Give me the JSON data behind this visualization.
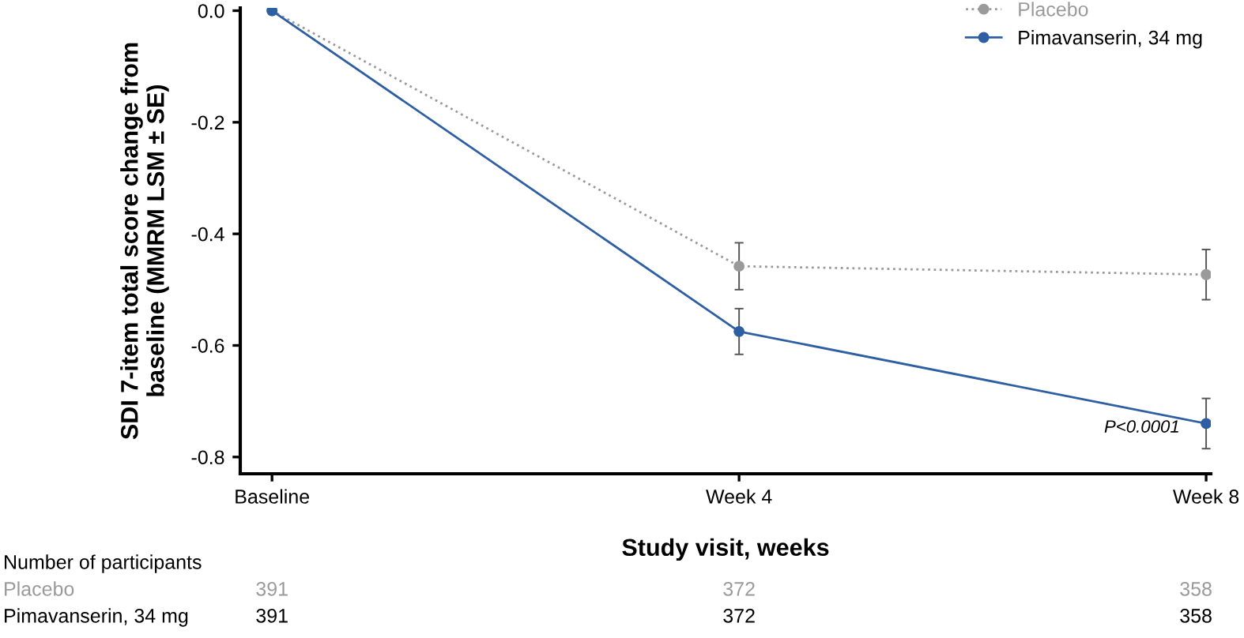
{
  "chart_data": {
    "type": "line",
    "categories": [
      "Baseline",
      "Week 4",
      "Week 8"
    ],
    "xlabel": "Study visit, weeks",
    "ylabel": "SDI 7-item total score change from\nbaseline (MMRM LSM ± SE)",
    "ylim": [
      -0.83,
      0.005
    ],
    "yticks": [
      {
        "value": 0,
        "label": "0.0"
      },
      {
        "value": -0.2,
        "label": "-0.2"
      },
      {
        "value": -0.4,
        "label": "-0.4"
      },
      {
        "value": -0.6,
        "label": "-0.6"
      },
      {
        "value": -0.8,
        "label": "-0.8"
      }
    ],
    "series": [
      {
        "name": "Placebo",
        "color": "#9a9a9a",
        "line_style": "dotted",
        "values": [
          0,
          -0.458,
          -0.473
        ],
        "errors": [
          null,
          0.042,
          0.045
        ]
      },
      {
        "name": "Pimavanserin, 34 mg",
        "color": "#2e5fa3",
        "line_style": "solid",
        "values": [
          0,
          -0.575,
          -0.74
        ],
        "errors": [
          null,
          0.041,
          0.045
        ]
      }
    ],
    "marker": "circle",
    "legend": "top right",
    "grid": false,
    "annotations": [
      {
        "text": "P<0.0001",
        "x": "Week 8",
        "y": -0.74
      },
      "Number of participants",
      "Placebo",
      "391",
      "372",
      "358",
      "Pimavanserin, 34 mg",
      "391",
      "372",
      "358"
    ]
  }
}
